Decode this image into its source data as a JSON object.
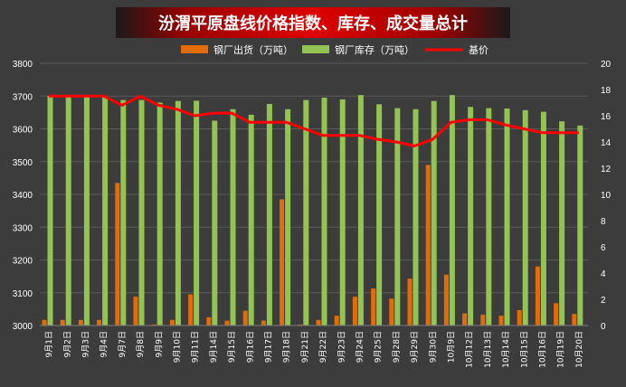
{
  "chart_data": {
    "type": "bar",
    "title": "汾渭平原盘线价格指数、库存、成交量总计",
    "categories": [
      "9月1日",
      "9月2日",
      "9月3日",
      "9月4日",
      "9月7日",
      "9月8日",
      "9月9日",
      "9月10日",
      "9月11日",
      "9月14日",
      "9月15日",
      "9月16日",
      "9月17日",
      "9月18日",
      "9月21日",
      "9月22日",
      "9月23日",
      "9月24日",
      "9月25日",
      "9月28日",
      "9月29日",
      "9月30日",
      "10月9日",
      "10月12日",
      "10月13日",
      "10月14日",
      "10月15日",
      "10月16日",
      "10月19日",
      "10月20日"
    ],
    "series": [
      {
        "name": "钢厂出货（万吨）",
        "type": "bar",
        "axis": "left",
        "color": "#e36c09",
        "values": [
          3017,
          3017,
          3017,
          3017,
          3435,
          3088,
          3003,
          3017,
          3095,
          3025,
          3015,
          3045,
          3015,
          3385,
          3003,
          3017,
          3030,
          3088,
          3113,
          3082,
          3143,
          3490,
          3155,
          3037,
          3033,
          3030,
          3047,
          3180,
          3068,
          3035
        ]
      },
      {
        "name": "钢厂库存（万吨）",
        "type": "bar",
        "axis": "left",
        "color": "#92c353",
        "values": [
          3700,
          3698,
          3697,
          3697,
          3688,
          3688,
          3680,
          3685,
          3686,
          3625,
          3660,
          3643,
          3676,
          3660,
          3688,
          3695,
          3690,
          3703,
          3675,
          3663,
          3660,
          3685,
          3703,
          3667,
          3663,
          3662,
          3657,
          3652,
          3623,
          3610
        ]
      },
      {
        "name": "基价",
        "type": "line",
        "axis": "right",
        "color": "#ff0000",
        "values": [
          17.5,
          17.5,
          17.5,
          17.5,
          16.8,
          17.5,
          16.8,
          16.5,
          16.0,
          16.2,
          16.2,
          15.5,
          15.5,
          15.5,
          15.0,
          14.5,
          14.5,
          14.5,
          14.2,
          14.0,
          13.7,
          14.2,
          15.5,
          15.7,
          15.7,
          15.3,
          15.0,
          14.7,
          14.7,
          14.7
        ]
      }
    ],
    "y_left": {
      "min": 3000,
      "max": 3800,
      "step": 100,
      "ticks": [
        "3000",
        "3100",
        "3200",
        "3300",
        "3400",
        "3500",
        "3600",
        "3700",
        "3800"
      ]
    },
    "y_right": {
      "min": 0,
      "max": 20,
      "step": 2,
      "ticks": [
        "0",
        "2",
        "4",
        "6",
        "8",
        "10",
        "12",
        "14",
        "16",
        "18",
        "20"
      ]
    },
    "grid": true,
    "legend_position": "top"
  }
}
